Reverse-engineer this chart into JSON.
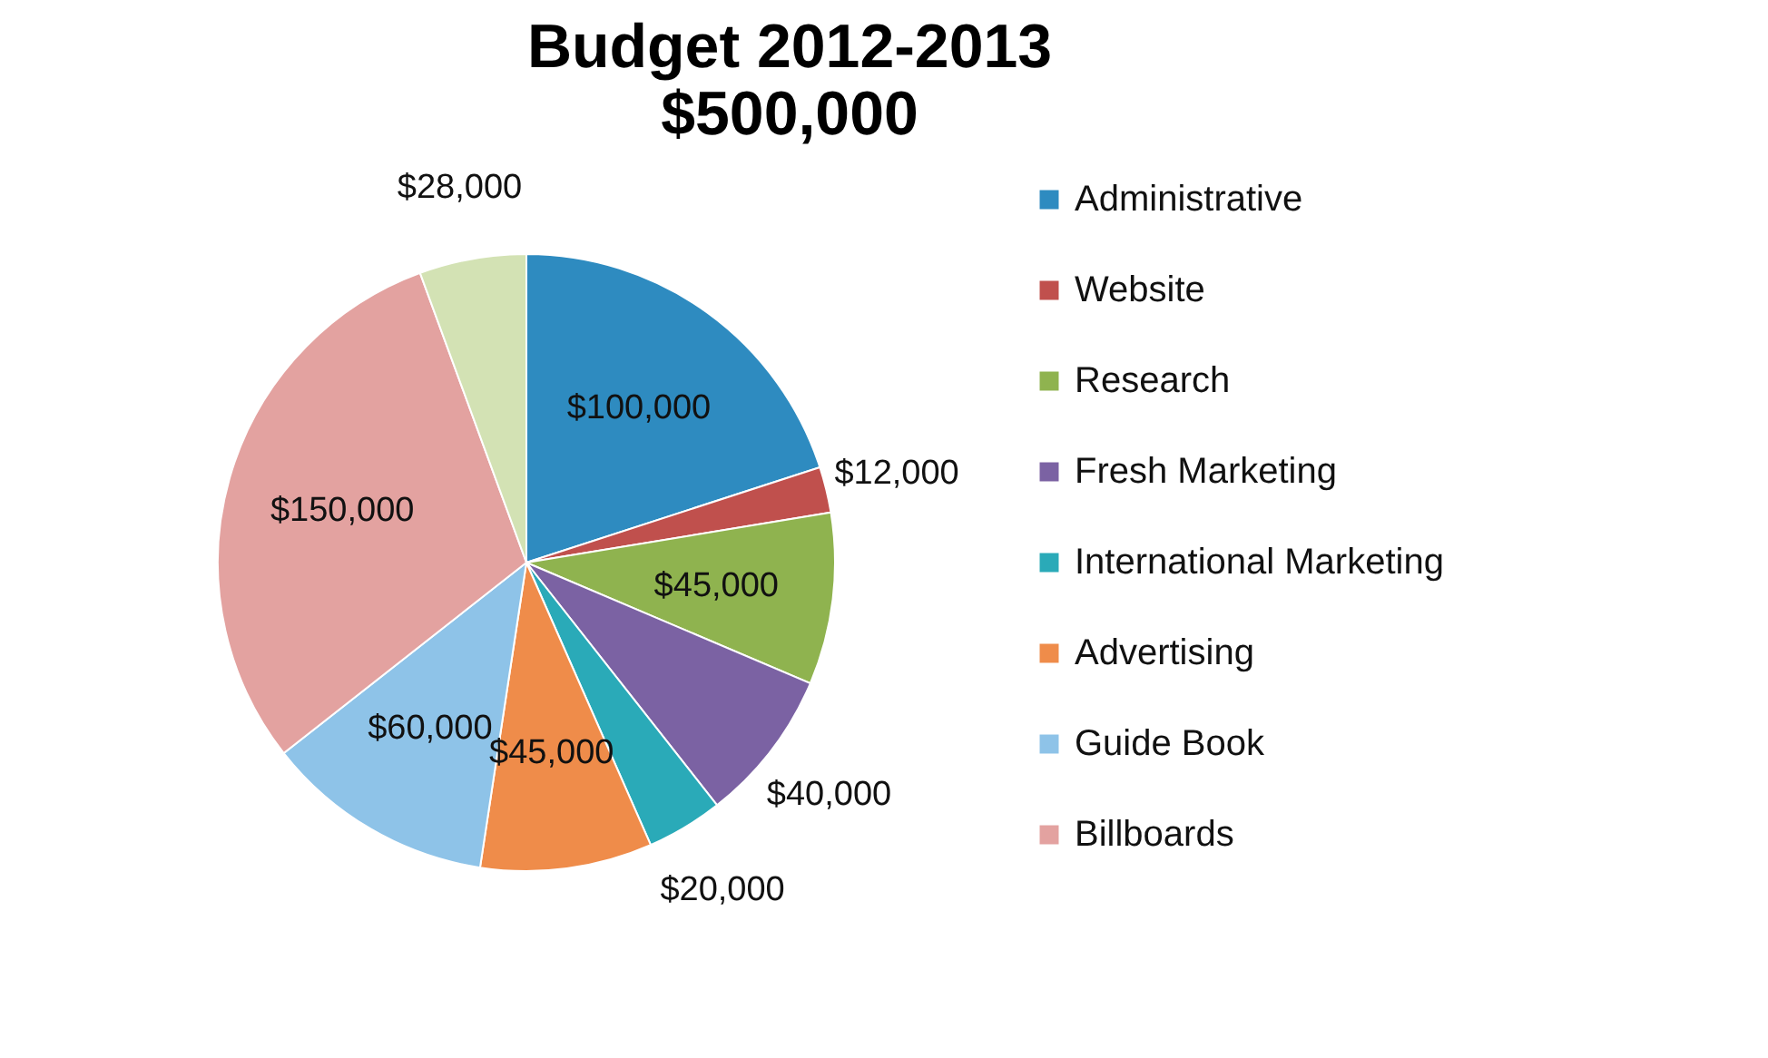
{
  "chart_data": {
    "type": "pie",
    "title": "Budget 2012-2013",
    "subtitle": "$500,000",
    "categories": [
      "Administrative",
      "Website",
      "Research",
      "Fresh Marketing",
      "International Marketing",
      "Advertising",
      "Guide Book",
      "Billboards",
      null
    ],
    "values": [
      100000,
      12000,
      45000,
      40000,
      20000,
      45000,
      60000,
      150000,
      28000
    ],
    "value_labels": [
      "$100,000",
      "$12,000",
      "$45,000",
      "$40,000",
      "$20,000",
      "$45,000",
      "$60,000",
      "$150,000",
      "$28,000"
    ],
    "colors": [
      "#2e8bc0",
      "#c0504d",
      "#8fb34f",
      "#7b62a3",
      "#2aaab8",
      "#ef8c4a",
      "#8ec3e8",
      "#e3a2a0",
      "#d3e2b4"
    ],
    "legend": "right"
  }
}
